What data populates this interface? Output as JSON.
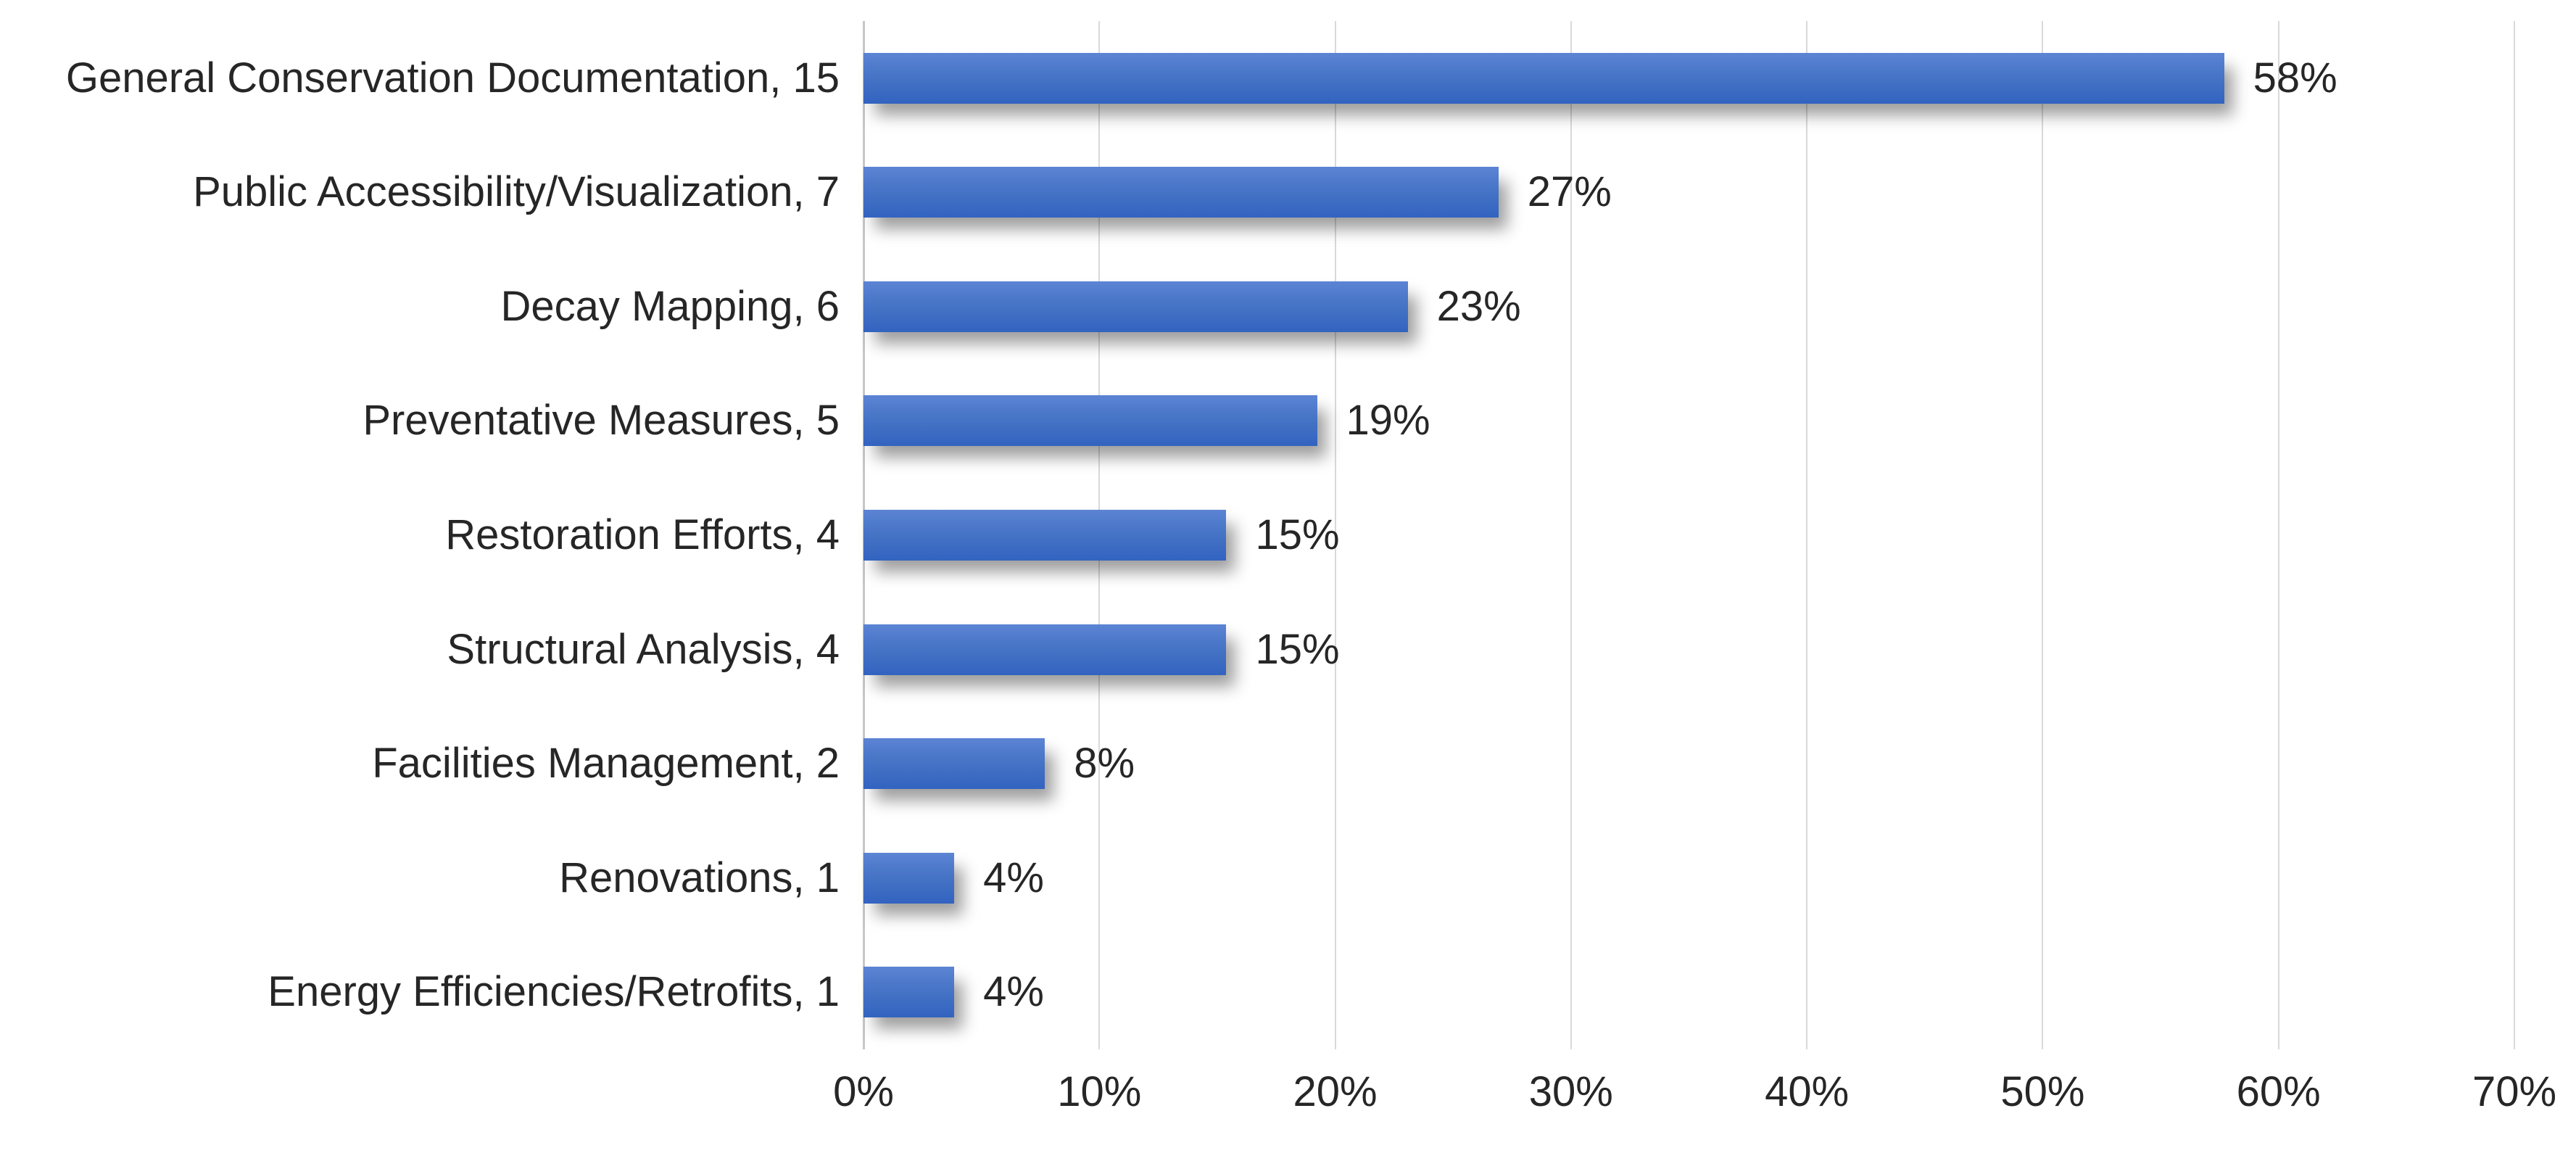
{
  "chart_data": {
    "type": "bar",
    "orientation": "horizontal",
    "title": "",
    "categories": [
      "General Conservation Documentation",
      "Public Accessibility/Visualization",
      "Decay Mapping",
      "Preventative Measures",
      "Restoration Efforts",
      "Structural Analysis",
      "Facilities Management",
      "Renovations",
      "Energy Efficiencies/Retrofits"
    ],
    "counts": [
      15,
      7,
      6,
      5,
      4,
      4,
      2,
      1,
      1
    ],
    "percent_labels": [
      "58%",
      "27%",
      "23%",
      "19%",
      "15%",
      "15%",
      "8%",
      "4%",
      "4%"
    ],
    "percent_base": 26,
    "category_label_separator": ", ",
    "x_ticks": [
      "0%",
      "10%",
      "20%",
      "30%",
      "40%",
      "50%",
      "60%",
      "70%"
    ],
    "xlim": [
      0,
      70
    ],
    "grid": true,
    "legend": false,
    "background": "#ffffff",
    "colors": {
      "bar_top": "#5c84d4",
      "bar_mid": "#4472c4",
      "bar_bottom": "#3263c0",
      "gridline": "#d9d9d9",
      "axis_line": "#c6c6c6",
      "text": "#262626"
    }
  }
}
